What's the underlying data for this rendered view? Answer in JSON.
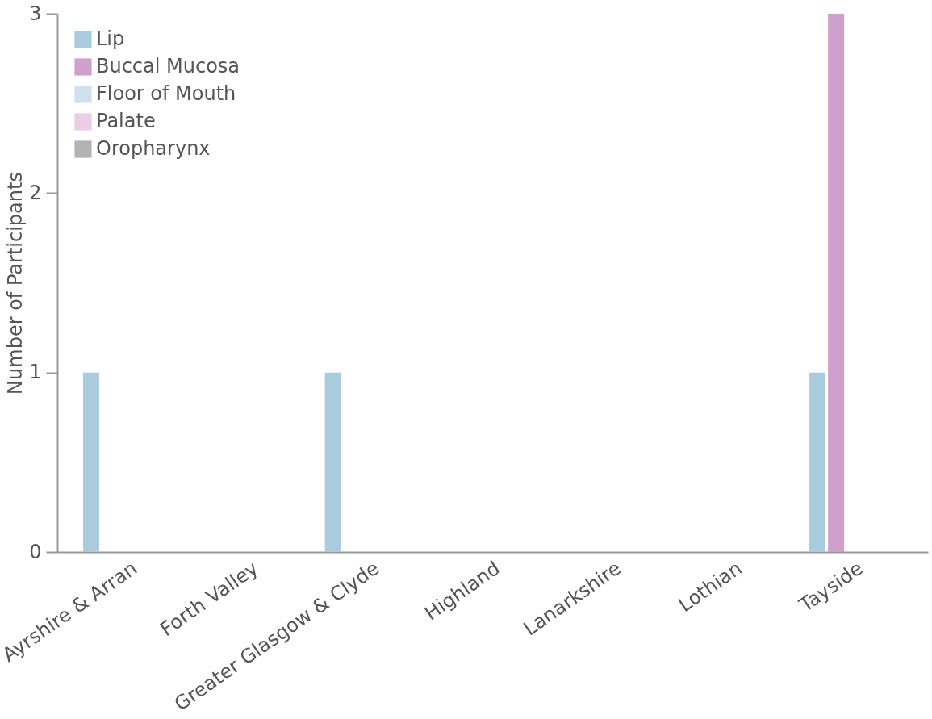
{
  "chart_data": {
    "type": "bar",
    "ylabel": "Number of Participants",
    "categories": [
      "Ayrshire & Arran",
      "Forth Valley",
      "Greater Glasgow & Clyde",
      "Highland",
      "Lanarkshire",
      "Lothian",
      "Tayside"
    ],
    "series": [
      {
        "name": "Lip",
        "color": "#a8cbdd",
        "values": [
          1,
          0,
          1,
          0,
          0,
          0,
          1
        ]
      },
      {
        "name": "Buccal Mucosa",
        "color": "#d0a0cc",
        "values": [
          0,
          0,
          0,
          0,
          0,
          0,
          3
        ]
      },
      {
        "name": "Floor of Mouth",
        "color": "#cfe1ec",
        "values": [
          0,
          0,
          0,
          0,
          0,
          0,
          0
        ]
      },
      {
        "name": "Palate",
        "color": "#ebcde4",
        "values": [
          0,
          0,
          0,
          0,
          0,
          0,
          0
        ]
      },
      {
        "name": "Oropharynx",
        "color": "#b3b3b3",
        "values": [
          0,
          0,
          0,
          0,
          0,
          0,
          0
        ]
      }
    ],
    "ylim": [
      0,
      3
    ],
    "yticks": [
      0,
      1,
      2,
      3
    ],
    "grid": false,
    "legend": "top left"
  }
}
